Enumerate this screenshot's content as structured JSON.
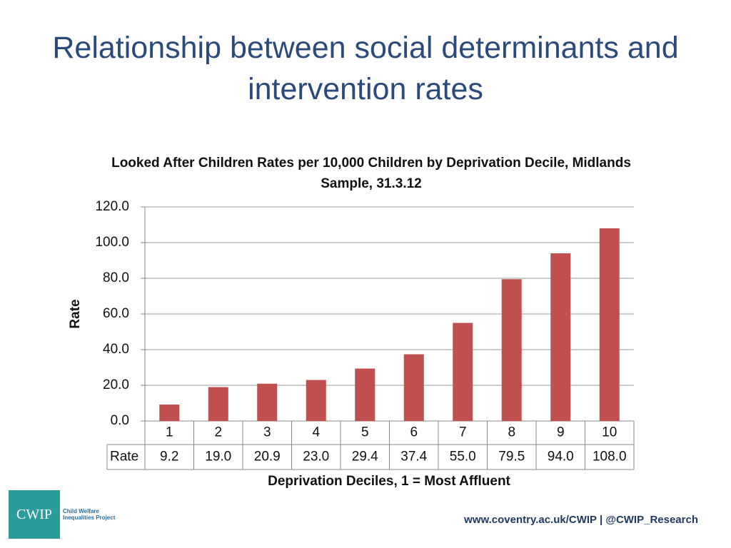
{
  "slide": {
    "title": "Relationship between social determinants and intervention rates"
  },
  "chart_data": {
    "type": "bar",
    "title": "Looked After Children Rates per 10,000 Children by Deprivation Decile, Midlands Sample, 31.3.12",
    "x_label": "Deprivation Deciles, 1 = Most Affluent",
    "y_label": "Rate",
    "categories": [
      "1",
      "2",
      "3",
      "4",
      "5",
      "6",
      "7",
      "8",
      "9",
      "10"
    ],
    "series": [
      {
        "name": "Rate",
        "color": "#c0504d",
        "values": [
          9.2,
          19.0,
          20.9,
          23.0,
          29.4,
          37.4,
          55.0,
          79.5,
          94.0,
          108.0
        ],
        "value_labels": [
          "9.2",
          "19.0",
          "20.9",
          "23.0",
          "29.4",
          "37.4",
          "55.0",
          "79.5",
          "94.0",
          "108.0"
        ]
      }
    ],
    "ylim": [
      0,
      120
    ],
    "yticks": [
      {
        "value": 0,
        "label": "0.0"
      },
      {
        "value": 20,
        "label": "20.0"
      },
      {
        "value": 40,
        "label": "40.0"
      },
      {
        "value": 60,
        "label": "60.0"
      },
      {
        "value": 80,
        "label": "80.0"
      },
      {
        "value": 100,
        "label": "100.0"
      },
      {
        "value": 120,
        "label": "120.0"
      }
    ],
    "grid": true
  },
  "logo": {
    "text": "CWIP",
    "subtitle": "Child Welfare Inequalities Project"
  },
  "footer": {
    "text": "www.coventry.ac.uk/CWIP | @CWIP_Research"
  }
}
